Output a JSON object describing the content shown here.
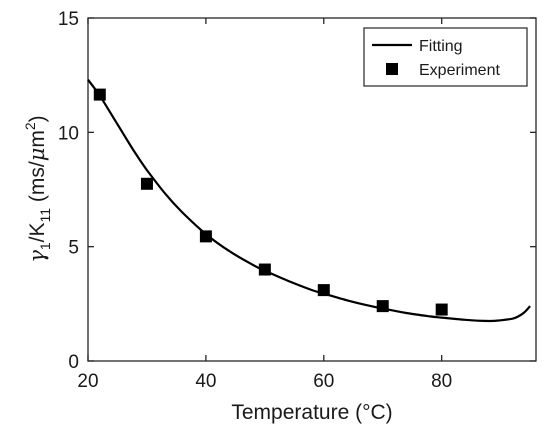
{
  "chart_data": {
    "type": "line",
    "xlabel": "Temperature (°C)",
    "ylabel": "γ1/K11 (ms/μm²)",
    "ylabel_parts": {
      "gamma": "γ",
      "gamma_sub": "1",
      "slash_k": "/K",
      "k_sub": "11",
      "unit_open": " (ms/",
      "mu": "μ",
      "unit_m": "m",
      "unit_sup": "2",
      "unit_close": ")"
    },
    "xlim": [
      20,
      96
    ],
    "ylim": [
      0,
      15
    ],
    "x_ticks": [
      20,
      40,
      60,
      80
    ],
    "y_ticks": [
      0,
      5,
      10,
      15
    ],
    "grid": false,
    "legend_position": "top-right",
    "series": [
      {
        "name": "Fitting",
        "kind": "line",
        "color": "#000000",
        "x": [
          20,
          22,
          25,
          28,
          30,
          33,
          36,
          40,
          44,
          48,
          50,
          54,
          58,
          60,
          64,
          68,
          70,
          74,
          78,
          80,
          84,
          88,
          90,
          92,
          93,
          94,
          95
        ],
        "y": [
          12.3,
          11.6,
          10.35,
          9.1,
          8.35,
          7.35,
          6.5,
          5.55,
          4.8,
          4.2,
          3.95,
          3.5,
          3.1,
          2.95,
          2.65,
          2.4,
          2.3,
          2.1,
          1.95,
          1.9,
          1.8,
          1.75,
          1.78,
          1.85,
          1.95,
          2.12,
          2.4
        ]
      },
      {
        "name": "Experiment",
        "kind": "scatter",
        "marker": "square",
        "color": "#000000",
        "x": [
          22,
          30,
          40,
          50,
          60,
          70,
          80
        ],
        "y": [
          11.65,
          7.75,
          5.45,
          4.0,
          3.1,
          2.4,
          2.25
        ]
      }
    ]
  }
}
